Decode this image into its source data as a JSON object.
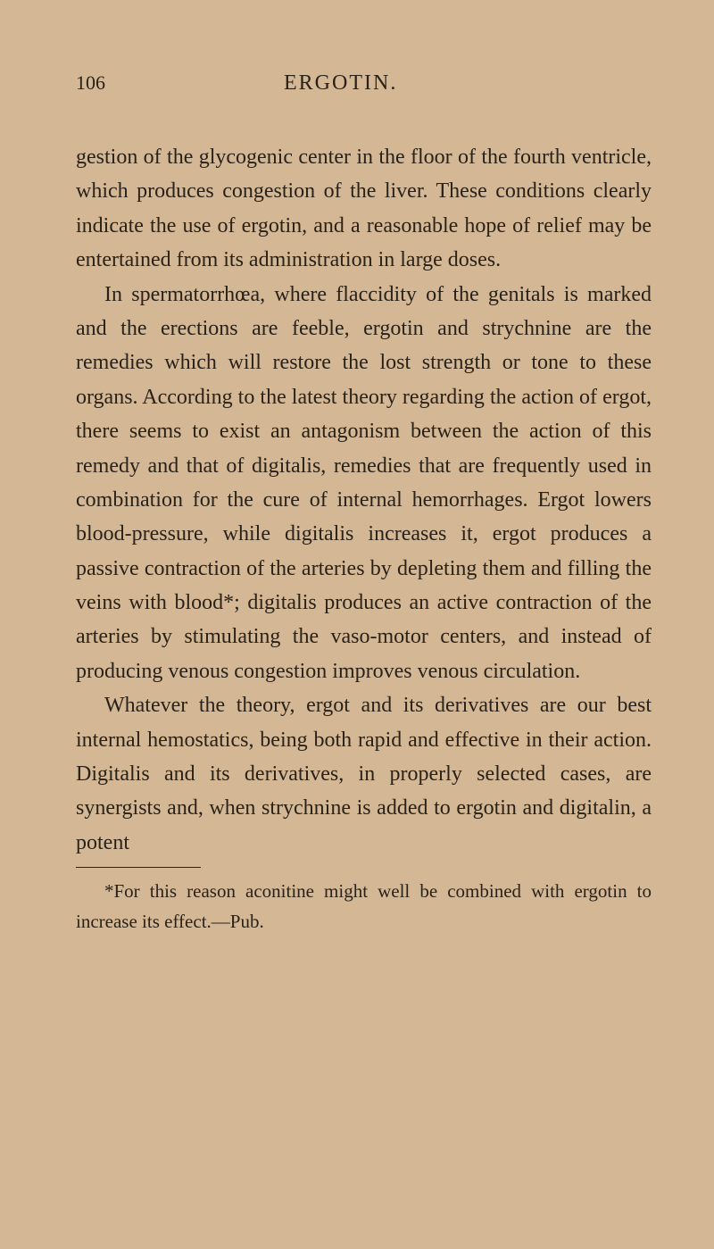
{
  "page": {
    "number": "106",
    "chapter_title": "ERGOTIN.",
    "background_color": "#d4b896",
    "text_color": "#2a2218",
    "body_fontsize": 24,
    "footnote_fontsize": 21,
    "line_height": 1.6
  },
  "paragraphs": {
    "p1": "gestion of the glycogenic center in the floor of the fourth ventricle, which produces congestion of the liver. These conditions clearly indicate the use of ergotin, and a reasonable hope of relief may be entertained from its administration in large doses.",
    "p2": "In spermatorrhœa, where flaccidity of the genitals is marked and the erections are feeble, ergotin and strychnine are the remedies which will restore the lost strength or tone to these organs. According to the latest theory regarding the action of ergot, there seems to exist an antagonism between the action of this remedy and that of digitalis, remedies that are frequently used in combination for the cure of internal hemorrhages. Ergot lowers blood-pressure, while digitalis increases it, ergot produces a passive contraction of the arteries by depleting them and filling the veins with blood*; digitalis produces an active contraction of the arteries by stimulating the vaso-motor centers, and instead of producing venous congestion improves venous circulation.",
    "p3": "Whatever the theory, ergot and its derivatives are our best internal hemostatics, being both rapid and effective in their action. Digitalis and its derivatives, in properly selected cases, are synergists and, when strychnine is added to ergotin and digitalin, a potent"
  },
  "footnote": {
    "text": "*For this reason aconitine might well be combined with ergotin to increase its effect.—Pub."
  }
}
